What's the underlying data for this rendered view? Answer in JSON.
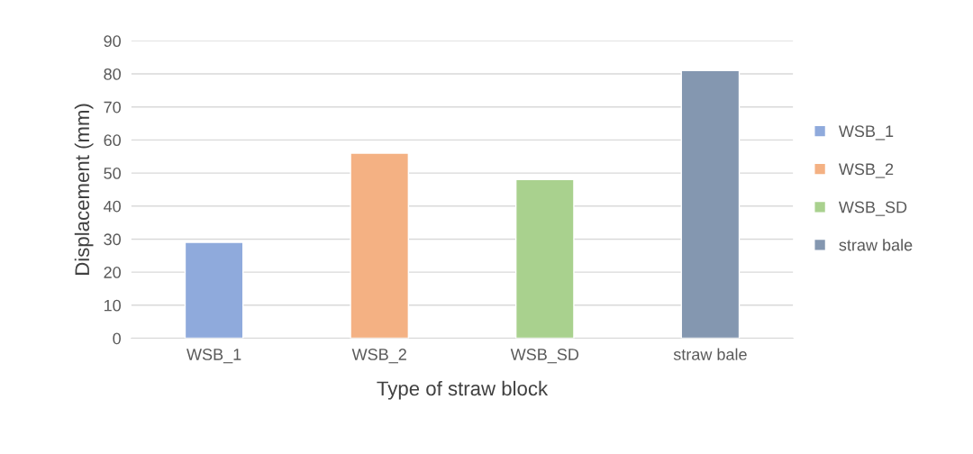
{
  "chart_data": {
    "type": "bar",
    "stacked": true,
    "categories": [
      "WSB_1",
      "WSB_2",
      "WSB_SD",
      "straw bale"
    ],
    "series": [
      {
        "name": "WSB_1",
        "color": "#8faadc",
        "values": [
          29,
          null,
          null,
          null
        ]
      },
      {
        "name": "WSB_2",
        "color": "#f4b183",
        "values": [
          null,
          56,
          null,
          null
        ]
      },
      {
        "name": "WSB_SD",
        "color": "#a9d18e",
        "values": [
          null,
          null,
          48,
          null
        ]
      },
      {
        "name": "straw bale",
        "color": "#8497b0",
        "values": [
          null,
          null,
          null,
          81
        ]
      }
    ],
    "xlabel": "Type of straw block",
    "ylabel": "Displacement (mm)",
    "ylim": [
      0,
      90
    ],
    "yticks": [
      0,
      10,
      20,
      30,
      40,
      50,
      60,
      70,
      80,
      90
    ],
    "grid": "y",
    "legend": "right"
  }
}
